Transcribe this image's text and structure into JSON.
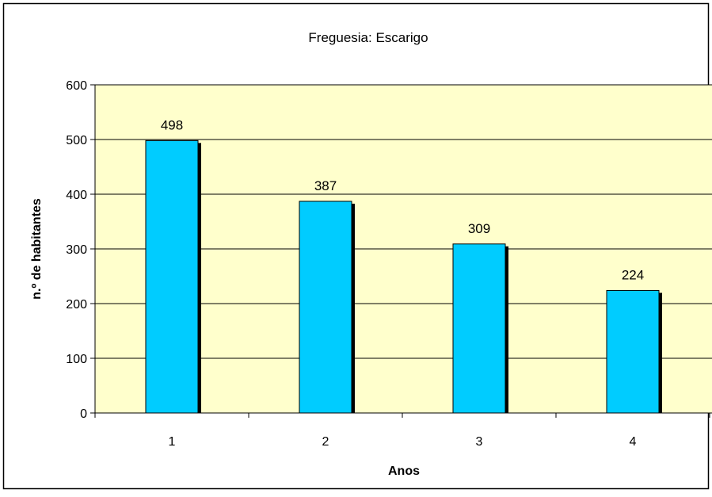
{
  "chart_data": {
    "type": "bar",
    "title": "Freguesia: Escarigo",
    "xlabel": "Anos",
    "ylabel": "n.º de habitantes",
    "categories": [
      "1",
      "2",
      "3",
      "4"
    ],
    "values": [
      498,
      387,
      309,
      224
    ],
    "ylim": [
      0,
      600
    ],
    "yticks": [
      0,
      100,
      200,
      300,
      400,
      500,
      600
    ],
    "grid": true,
    "legend": "none",
    "colors": {
      "bar": "#00CCFF",
      "bar_shadow": "#000000",
      "plot_background": "#FFFFCC",
      "gridline": "#000000",
      "border": "#000000"
    }
  }
}
